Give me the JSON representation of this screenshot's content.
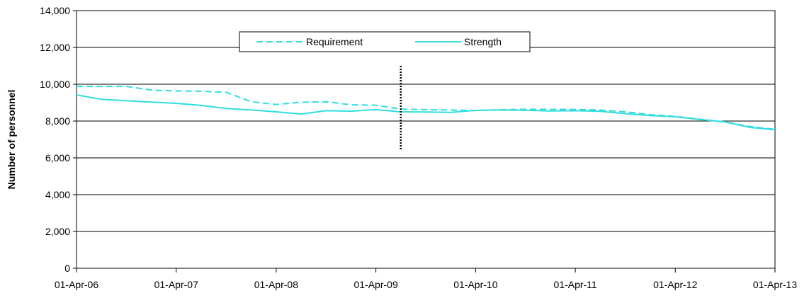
{
  "chart_data": {
    "type": "line",
    "title": "",
    "xlabel": "",
    "ylabel": "Number of personnel",
    "ylim": [
      0,
      14000
    ],
    "y_ticks": [
      0,
      2000,
      4000,
      6000,
      8000,
      10000,
      12000,
      14000
    ],
    "y_tick_labels": [
      "0",
      "2,000",
      "4,000",
      "6,000",
      "8,000",
      "10,000",
      "12,000",
      "14,000"
    ],
    "x_range": [
      "2006-04-01",
      "2013-04-01"
    ],
    "x_ticks": [
      "2006-04-01",
      "2007-04-01",
      "2008-04-01",
      "2009-04-01",
      "2010-04-01",
      "2011-04-01",
      "2012-04-01",
      "2013-04-01"
    ],
    "x_tick_labels": [
      "01-Apr-06",
      "01-Apr-07",
      "01-Apr-08",
      "01-Apr-09",
      "01-Apr-10",
      "01-Apr-11",
      "01-Apr-12",
      "01-Apr-13"
    ],
    "grid": "horizontal",
    "legend_position": "top-center",
    "marker_line": {
      "date": "2009-07-01",
      "y_range": [
        6400,
        11000
      ],
      "style": "dotted",
      "color": "#000000"
    },
    "series": [
      {
        "name": "Requirement",
        "style": "dashed",
        "color": "#33dddd",
        "points": [
          [
            "2006-04-01",
            9880
          ],
          [
            "2006-07-01",
            9880
          ],
          [
            "2006-10-01",
            9880
          ],
          [
            "2007-01-01",
            9680
          ],
          [
            "2007-04-01",
            9640
          ],
          [
            "2007-07-01",
            9620
          ],
          [
            "2007-10-01",
            9560
          ],
          [
            "2008-01-01",
            9050
          ],
          [
            "2008-04-01",
            8900
          ],
          [
            "2008-07-01",
            9020
          ],
          [
            "2008-10-01",
            9050
          ],
          [
            "2009-01-01",
            8880
          ],
          [
            "2009-04-01",
            8860
          ],
          [
            "2009-07-01",
            8650
          ],
          [
            "2009-10-01",
            8620
          ],
          [
            "2010-01-01",
            8600
          ],
          [
            "2010-04-01",
            8570
          ],
          [
            "2010-07-01",
            8610
          ],
          [
            "2010-10-01",
            8640
          ],
          [
            "2011-01-01",
            8640
          ],
          [
            "2011-04-01",
            8630
          ],
          [
            "2011-07-01",
            8600
          ],
          [
            "2011-10-01",
            8500
          ],
          [
            "2012-01-01",
            8350
          ],
          [
            "2012-04-01",
            8250
          ],
          [
            "2012-07-01",
            8100
          ],
          [
            "2012-10-01",
            7950
          ],
          [
            "2013-01-01",
            7700
          ],
          [
            "2013-04-01",
            7550
          ]
        ]
      },
      {
        "name": "Strength",
        "style": "solid",
        "color": "#33dddd",
        "points": [
          [
            "2006-04-01",
            9420
          ],
          [
            "2006-07-01",
            9180
          ],
          [
            "2006-10-01",
            9100
          ],
          [
            "2007-01-01",
            9030
          ],
          [
            "2007-04-01",
            8960
          ],
          [
            "2007-07-01",
            8850
          ],
          [
            "2007-10-01",
            8680
          ],
          [
            "2008-01-01",
            8600
          ],
          [
            "2008-04-01",
            8500
          ],
          [
            "2008-07-01",
            8380
          ],
          [
            "2008-10-01",
            8560
          ],
          [
            "2009-01-01",
            8540
          ],
          [
            "2009-04-01",
            8620
          ],
          [
            "2009-07-01",
            8500
          ],
          [
            "2009-10-01",
            8490
          ],
          [
            "2010-01-01",
            8470
          ],
          [
            "2010-04-01",
            8580
          ],
          [
            "2010-07-01",
            8600
          ],
          [
            "2010-10-01",
            8580
          ],
          [
            "2011-01-01",
            8550
          ],
          [
            "2011-04-01",
            8560
          ],
          [
            "2011-07-01",
            8530
          ],
          [
            "2011-10-01",
            8400
          ],
          [
            "2012-01-01",
            8300
          ],
          [
            "2012-04-01",
            8230
          ],
          [
            "2012-07-01",
            8080
          ],
          [
            "2012-10-01",
            7950
          ],
          [
            "2013-01-01",
            7650
          ],
          [
            "2013-04-01",
            7530
          ]
        ]
      }
    ]
  }
}
